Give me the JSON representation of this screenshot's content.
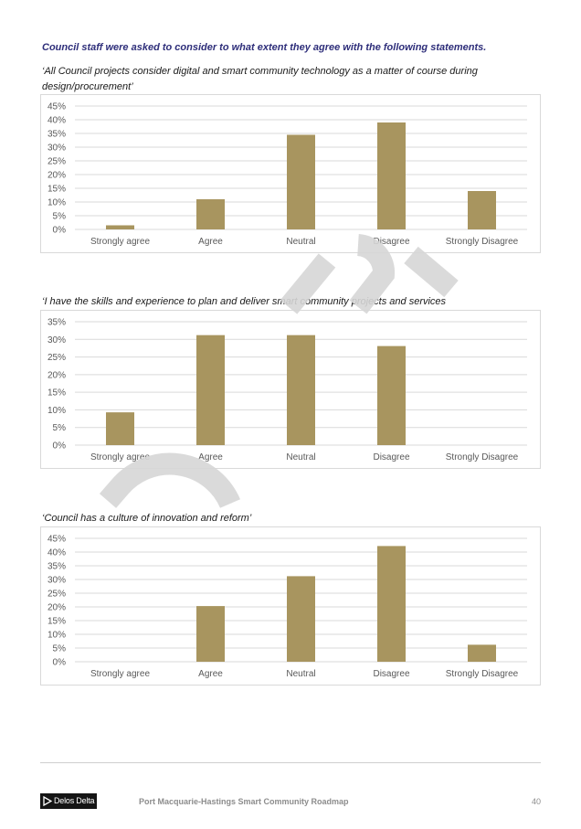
{
  "intro": "Council staff were asked to consider to what extent they agree with the following statements.",
  "chart_data": [
    {
      "type": "bar",
      "title": "‘All Council projects consider digital and smart community technology as a matter of course during design/procurement’",
      "categories": [
        "Strongly agree",
        "Agree",
        "Neutral",
        "Disagree",
        "Strongly Disagree"
      ],
      "values": [
        1.5,
        11,
        34.5,
        39,
        14
      ],
      "ylim": [
        0,
        45
      ],
      "yticks": [
        "0%",
        "5%",
        "10%",
        "15%",
        "20%",
        "25%",
        "30%",
        "35%",
        "40%",
        "45%"
      ],
      "grid": true,
      "xlabel": "",
      "ylabel": ""
    },
    {
      "type": "bar",
      "title": "‘I have the skills and experience to plan and deliver smart community projects and services",
      "categories": [
        "Strongly agree",
        "Agree",
        "Neutral",
        "Disagree",
        "Strongly Disagree"
      ],
      "values": [
        9.3,
        31.2,
        31.2,
        28.1,
        0
      ],
      "ylim": [
        0,
        35
      ],
      "yticks": [
        "0%",
        "5%",
        "10%",
        "15%",
        "20%",
        "25%",
        "30%",
        "35%"
      ],
      "grid": true,
      "xlabel": "",
      "ylabel": ""
    },
    {
      "type": "bar",
      "title": "‘Council has a culture of innovation and reform’",
      "categories": [
        "Strongly agree",
        "Agree",
        "Neutral",
        "Disagree",
        "Strongly Disagree"
      ],
      "values": [
        0,
        20.3,
        31.2,
        42.2,
        6.2
      ],
      "ylim": [
        0,
        45
      ],
      "yticks": [
        "0%",
        "5%",
        "10%",
        "15%",
        "20%",
        "25%",
        "30%",
        "35%",
        "40%",
        "45%"
      ],
      "grid": true,
      "xlabel": "",
      "ylabel": ""
    }
  ],
  "colors": {
    "bar": "#a8955f",
    "intro": "#2e2e7a",
    "grid": "#d9d9d9"
  },
  "footer": {
    "logo": "Delos Delta",
    "title": "Port Macquarie-Hastings Smart Community Roadmap",
    "page_number": "40"
  }
}
